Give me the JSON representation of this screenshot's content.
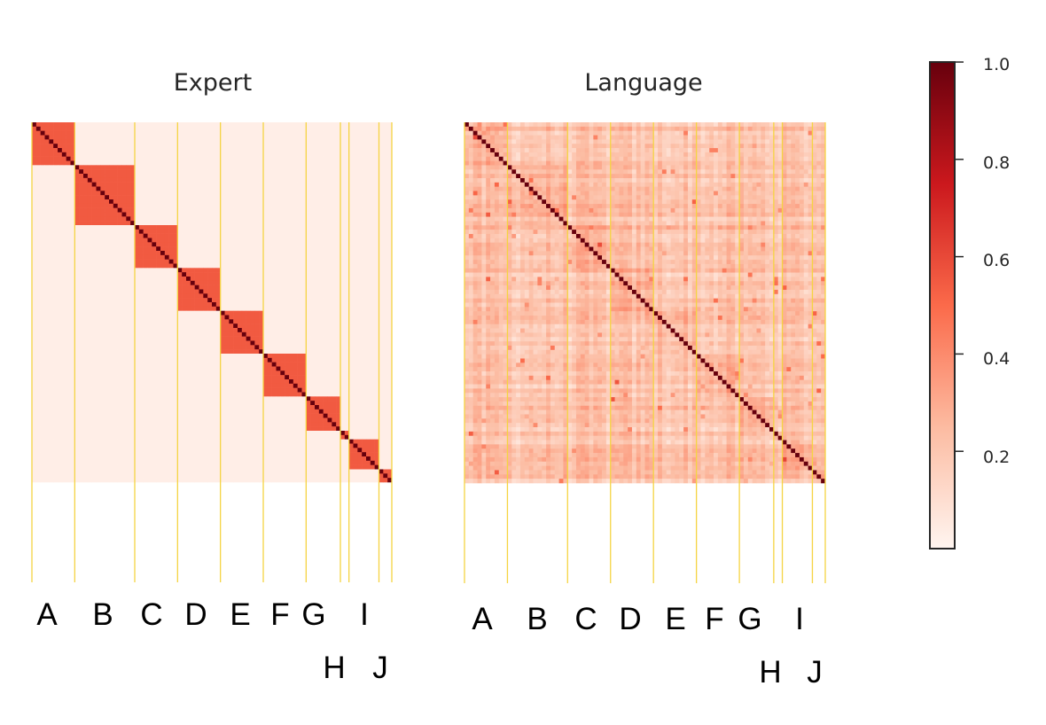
{
  "chart_data": [
    {
      "type": "heatmap",
      "title": "Expert",
      "groups": [
        "A",
        "B",
        "C",
        "D",
        "E",
        "F",
        "G",
        "H",
        "I",
        "J"
      ],
      "group_sizes": [
        10,
        14,
        10,
        10,
        10,
        10,
        8,
        2,
        7,
        3
      ],
      "within_group_value": 0.55,
      "between_group_value": 0.03,
      "diagonal_value": 1.0,
      "boundary_color": "#f5d442",
      "colormap": "Reds"
    },
    {
      "type": "heatmap",
      "title": "Language",
      "groups": [
        "A",
        "B",
        "C",
        "D",
        "E",
        "F",
        "G",
        "H",
        "I",
        "J"
      ],
      "group_sizes": [
        10,
        14,
        10,
        10,
        10,
        10,
        8,
        2,
        7,
        3
      ],
      "typical_off_diagonal_range": [
        0.05,
        0.35
      ],
      "diagonal_value": 1.0,
      "boundary_color": "#f5d442",
      "colormap": "Reds"
    }
  ],
  "colorbar": {
    "range": [
      0.0,
      1.0
    ],
    "ticks": [
      "0.2",
      "0.4",
      "0.6",
      "0.8",
      "1.0"
    ],
    "tick_values": [
      0.2,
      0.4,
      0.6,
      0.8,
      1.0
    ],
    "colors": [
      "#fff5f0",
      "#fcbba1",
      "#fb6a4a",
      "#cb181d",
      "#67000d"
    ]
  }
}
